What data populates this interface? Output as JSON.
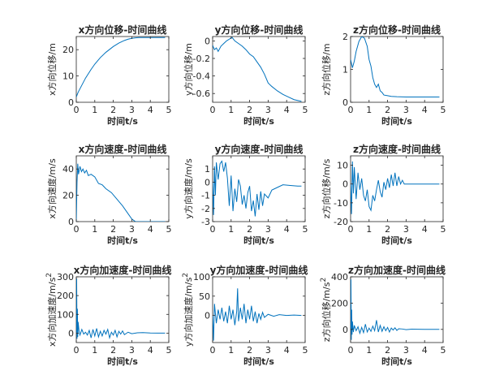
{
  "figure": {
    "background": "#ffffff",
    "line_color": "#0072bd",
    "axis_color": "#262626"
  },
  "chart_data": [
    {
      "type": "line",
      "title": "x方向位移-时间曲线",
      "xlabel": "时间t/s",
      "ylabel": "x方向位移/m",
      "xlim": [
        0,
        5
      ],
      "ylim": [
        0,
        25
      ],
      "xticks": [
        "0",
        "1",
        "2",
        "3",
        "4",
        "5"
      ],
      "yticks": [
        "0",
        "10",
        "20"
      ],
      "x": [
        0,
        0.1,
        0.3,
        0.5,
        0.8,
        1.0,
        1.3,
        1.6,
        2.0,
        2.3,
        2.6,
        2.8,
        3.0,
        3.2,
        3.4,
        3.6,
        4.0,
        4.4,
        4.8
      ],
      "y": [
        2,
        3.8,
        6.5,
        9.2,
        12.5,
        14.5,
        17.0,
        19.0,
        21.2,
        22.5,
        23.5,
        24.0,
        24.3,
        24.5,
        24.6,
        24.6,
        24.6,
        24.6,
        24.6
      ]
    },
    {
      "type": "line",
      "title": "y方向位移-时间曲线",
      "xlabel": "时间t/s",
      "ylabel": "y方向位移/m",
      "xlim": [
        0,
        5
      ],
      "ylim": [
        -0.7,
        0.05
      ],
      "xticks": [
        "0",
        "1",
        "2",
        "3",
        "4",
        "5"
      ],
      "yticks": [
        "0",
        "-0.2",
        "-0.4",
        "-0.6"
      ],
      "x": [
        0,
        0.1,
        0.2,
        0.3,
        0.45,
        0.6,
        0.75,
        0.9,
        1.05,
        1.2,
        1.4,
        1.6,
        1.8,
        2.0,
        2.2,
        2.4,
        2.6,
        2.8,
        3.0,
        3.2,
        3.5,
        3.8,
        4.1,
        4.4,
        4.8
      ],
      "y": [
        -0.05,
        -0.1,
        -0.08,
        -0.12,
        -0.06,
        -0.03,
        0.0,
        0.02,
        0.04,
        0.0,
        -0.03,
        -0.06,
        -0.1,
        -0.15,
        -0.18,
        -0.24,
        -0.3,
        -0.38,
        -0.48,
        -0.52,
        -0.57,
        -0.61,
        -0.64,
        -0.67,
        -0.69
      ]
    },
    {
      "type": "line",
      "title": "z方向位移-时间曲线",
      "xlabel": "时间t/s",
      "ylabel": "z方向位移/m",
      "xlim": [
        0,
        5
      ],
      "ylim": [
        0,
        2
      ],
      "xticks": [
        "0",
        "1",
        "2",
        "3",
        "4",
        "5"
      ],
      "yticks": [
        "0",
        "1",
        "2"
      ],
      "x": [
        0,
        0.1,
        0.2,
        0.3,
        0.45,
        0.6,
        0.75,
        0.9,
        1.0,
        1.1,
        1.2,
        1.3,
        1.4,
        1.5,
        1.6,
        1.7,
        1.8,
        2.0,
        2.2,
        2.5,
        3.0,
        3.5,
        4.0,
        4.5,
        4.8
      ],
      "y": [
        1.3,
        1.05,
        1.25,
        1.55,
        1.85,
        2.0,
        1.95,
        1.7,
        1.3,
        1.1,
        0.75,
        0.55,
        0.45,
        0.55,
        0.35,
        0.3,
        0.22,
        0.2,
        0.18,
        0.17,
        0.16,
        0.16,
        0.16,
        0.16,
        0.16
      ]
    },
    {
      "type": "line",
      "title": "x方向速度-时间曲线",
      "xlabel": "时间t/s",
      "ylabel": "x方向速度/m/s",
      "xlim": [
        0,
        5
      ],
      "ylim": [
        0,
        50
      ],
      "xticks": [
        "0",
        "1",
        "2",
        "3",
        "4",
        "5"
      ],
      "yticks": [
        "0",
        "20",
        "40"
      ],
      "x": [
        0,
        0.04,
        0.08,
        0.12,
        0.2,
        0.28,
        0.36,
        0.45,
        0.55,
        0.65,
        0.8,
        1.0,
        1.2,
        1.4,
        1.6,
        1.9,
        2.2,
        2.5,
        2.8,
        3.0,
        3.2,
        3.3,
        3.6,
        4.0,
        4.5,
        4.8
      ],
      "y": [
        0,
        30,
        44,
        36,
        42,
        38,
        40,
        37,
        39,
        35,
        36,
        34,
        29,
        28,
        25,
        22,
        17,
        12,
        6,
        2,
        0,
        0,
        0,
        0,
        0,
        0
      ]
    },
    {
      "type": "line",
      "title": "y方向速度-时间曲线",
      "xlabel": "时间t/s",
      "ylabel": "y方向速度/m/s",
      "xlim": [
        0,
        5
      ],
      "ylim": [
        -3,
        2
      ],
      "xticks": [
        "0",
        "1",
        "2",
        "3",
        "4",
        "5"
      ],
      "yticks": [
        "1",
        "0",
        "-1",
        "-2",
        "-3"
      ],
      "x": [
        0,
        0.05,
        0.1,
        0.15,
        0.2,
        0.3,
        0.4,
        0.5,
        0.6,
        0.7,
        0.8,
        0.9,
        1.0,
        1.1,
        1.2,
        1.3,
        1.4,
        1.5,
        1.6,
        1.7,
        1.8,
        1.9,
        2.0,
        2.1,
        2.2,
        2.3,
        2.4,
        2.5,
        2.6,
        2.7,
        2.8,
        3.0,
        3.2,
        3.5,
        3.8,
        4.2,
        4.6,
        4.8
      ],
      "y": [
        0,
        -2.5,
        1.2,
        -1.0,
        1.5,
        0.2,
        1.4,
        1.6,
        0.8,
        1.5,
        0.3,
        -1.8,
        0.5,
        -2.2,
        -0.5,
        -1.5,
        0.2,
        -0.3,
        -1.7,
        -1.0,
        -2.0,
        -0.8,
        -0.3,
        -2.2,
        -1.4,
        -2.6,
        -0.9,
        -2.1,
        -0.7,
        -1.8,
        -0.9,
        -1.2,
        -0.6,
        -0.4,
        -0.2,
        -0.25,
        -0.3,
        -0.3
      ]
    },
    {
      "type": "line",
      "title": "z方向速度-时间曲线",
      "xlabel": "时间t/s",
      "ylabel": "z方向位移/m/s",
      "xlim": [
        0,
        5
      ],
      "ylim": [
        -20,
        15
      ],
      "xticks": [
        "0",
        "1",
        "2",
        "3",
        "4",
        "5"
      ],
      "yticks": [
        "10",
        "0",
        "-10",
        "-20"
      ],
      "x": [
        0,
        0.05,
        0.1,
        0.15,
        0.2,
        0.3,
        0.4,
        0.5,
        0.6,
        0.7,
        0.8,
        0.9,
        1.0,
        1.1,
        1.2,
        1.3,
        1.4,
        1.5,
        1.6,
        1.7,
        1.8,
        1.9,
        2.0,
        2.1,
        2.2,
        2.3,
        2.4,
        2.5,
        2.6,
        2.7,
        2.8,
        2.9,
        3.0,
        3.5,
        4.0,
        4.5,
        4.8
      ],
      "y": [
        0,
        -16,
        12,
        -5,
        9,
        -8,
        6,
        -3,
        3,
        -6,
        -9,
        -3,
        -12,
        -14,
        -6,
        -9,
        -3,
        2,
        -4,
        -7,
        1,
        -3,
        3,
        -2,
        5,
        -1,
        6,
        -1,
        4,
        0,
        2,
        0,
        0,
        0,
        0,
        0,
        0
      ]
    },
    {
      "type": "line",
      "title": "x方向加速度-时间曲线",
      "xlabel": "时间t/s",
      "ylabel": "x方向加速度/m/s",
      "ylabel_superscript": "2",
      "xlim": [
        0,
        5
      ],
      "ylim": [
        -50,
        300
      ],
      "xticks": [
        "0",
        "1",
        "2",
        "3",
        "4",
        "5"
      ],
      "yticks": [
        "0",
        "100",
        "200",
        "300"
      ],
      "x": [
        0,
        0.02,
        0.04,
        0.06,
        0.08,
        0.1,
        0.15,
        0.2,
        0.3,
        0.4,
        0.5,
        0.6,
        0.7,
        0.8,
        0.9,
        1.0,
        1.1,
        1.2,
        1.3,
        1.4,
        1.5,
        1.6,
        1.7,
        1.8,
        1.9,
        2.0,
        2.1,
        2.2,
        2.3,
        2.4,
        2.5,
        2.6,
        2.8,
        3.0,
        3.3,
        3.6,
        4.0,
        4.4,
        4.8
      ],
      "y": [
        0,
        290,
        -30,
        130,
        -20,
        60,
        10,
        -10,
        20,
        -5,
        5,
        -10,
        15,
        -25,
        20,
        -15,
        25,
        -20,
        10,
        -15,
        15,
        -5,
        20,
        -25,
        5,
        -10,
        15,
        -20,
        10,
        -5,
        12,
        -8,
        5,
        -3,
        2,
        3,
        1,
        0,
        0
      ]
    },
    {
      "type": "line",
      "title": "y方向加速度-时间曲线",
      "xlabel": "时间t/s",
      "ylabel": "y方向加速度/m/s",
      "ylabel_superscript": "2",
      "xlim": [
        0,
        5
      ],
      "ylim": [
        -70,
        100
      ],
      "xticks": [
        "0",
        "1",
        "2",
        "3",
        "4",
        "5"
      ],
      "yticks": [
        "0",
        "50",
        "100"
      ],
      "x": [
        0,
        0.05,
        0.1,
        0.2,
        0.3,
        0.4,
        0.5,
        0.6,
        0.7,
        0.8,
        0.9,
        1.0,
        1.1,
        1.2,
        1.3,
        1.35,
        1.4,
        1.5,
        1.6,
        1.7,
        1.8,
        1.9,
        2.0,
        2.1,
        2.2,
        2.3,
        2.4,
        2.5,
        2.6,
        2.7,
        2.8,
        3.0,
        3.3,
        3.6,
        4.0,
        4.4,
        4.8
      ],
      "y": [
        0,
        -65,
        30,
        -20,
        15,
        -10,
        20,
        -15,
        10,
        -20,
        25,
        -10,
        15,
        -25,
        10,
        70,
        -15,
        20,
        -10,
        30,
        -20,
        15,
        -10,
        25,
        -15,
        10,
        -20,
        5,
        -10,
        8,
        -5,
        3,
        -2,
        2,
        0,
        1,
        0
      ]
    },
    {
      "type": "line",
      "title": "z方向加速度-时间曲线",
      "xlabel": "时间t/s",
      "ylabel": "z方向位移/m/s",
      "ylabel_superscript": "2",
      "xlim": [
        0,
        5
      ],
      "ylim": [
        -100,
        400
      ],
      "xticks": [
        "0",
        "1",
        "2",
        "3",
        "4",
        "5"
      ],
      "yticks": [
        "0",
        "200",
        "400"
      ],
      "x": [
        0,
        0.02,
        0.04,
        0.06,
        0.08,
        0.1,
        0.15,
        0.2,
        0.3,
        0.4,
        0.5,
        0.6,
        0.7,
        0.8,
        0.9,
        1.0,
        1.1,
        1.2,
        1.3,
        1.4,
        1.5,
        1.6,
        1.7,
        1.8,
        1.9,
        2.0,
        2.1,
        2.2,
        2.3,
        2.4,
        2.5,
        2.6,
        2.8,
        3.0,
        3.3,
        3.6,
        4.0,
        4.4,
        4.8
      ],
      "y": [
        0,
        380,
        -80,
        150,
        -40,
        60,
        -20,
        30,
        -10,
        20,
        -30,
        15,
        -25,
        40,
        -20,
        10,
        -15,
        25,
        -10,
        70,
        -20,
        30,
        -15,
        20,
        -10,
        15,
        -20,
        10,
        -5,
        12,
        -8,
        5,
        3,
        -2,
        2,
        1,
        0,
        0,
        0
      ]
    }
  ]
}
